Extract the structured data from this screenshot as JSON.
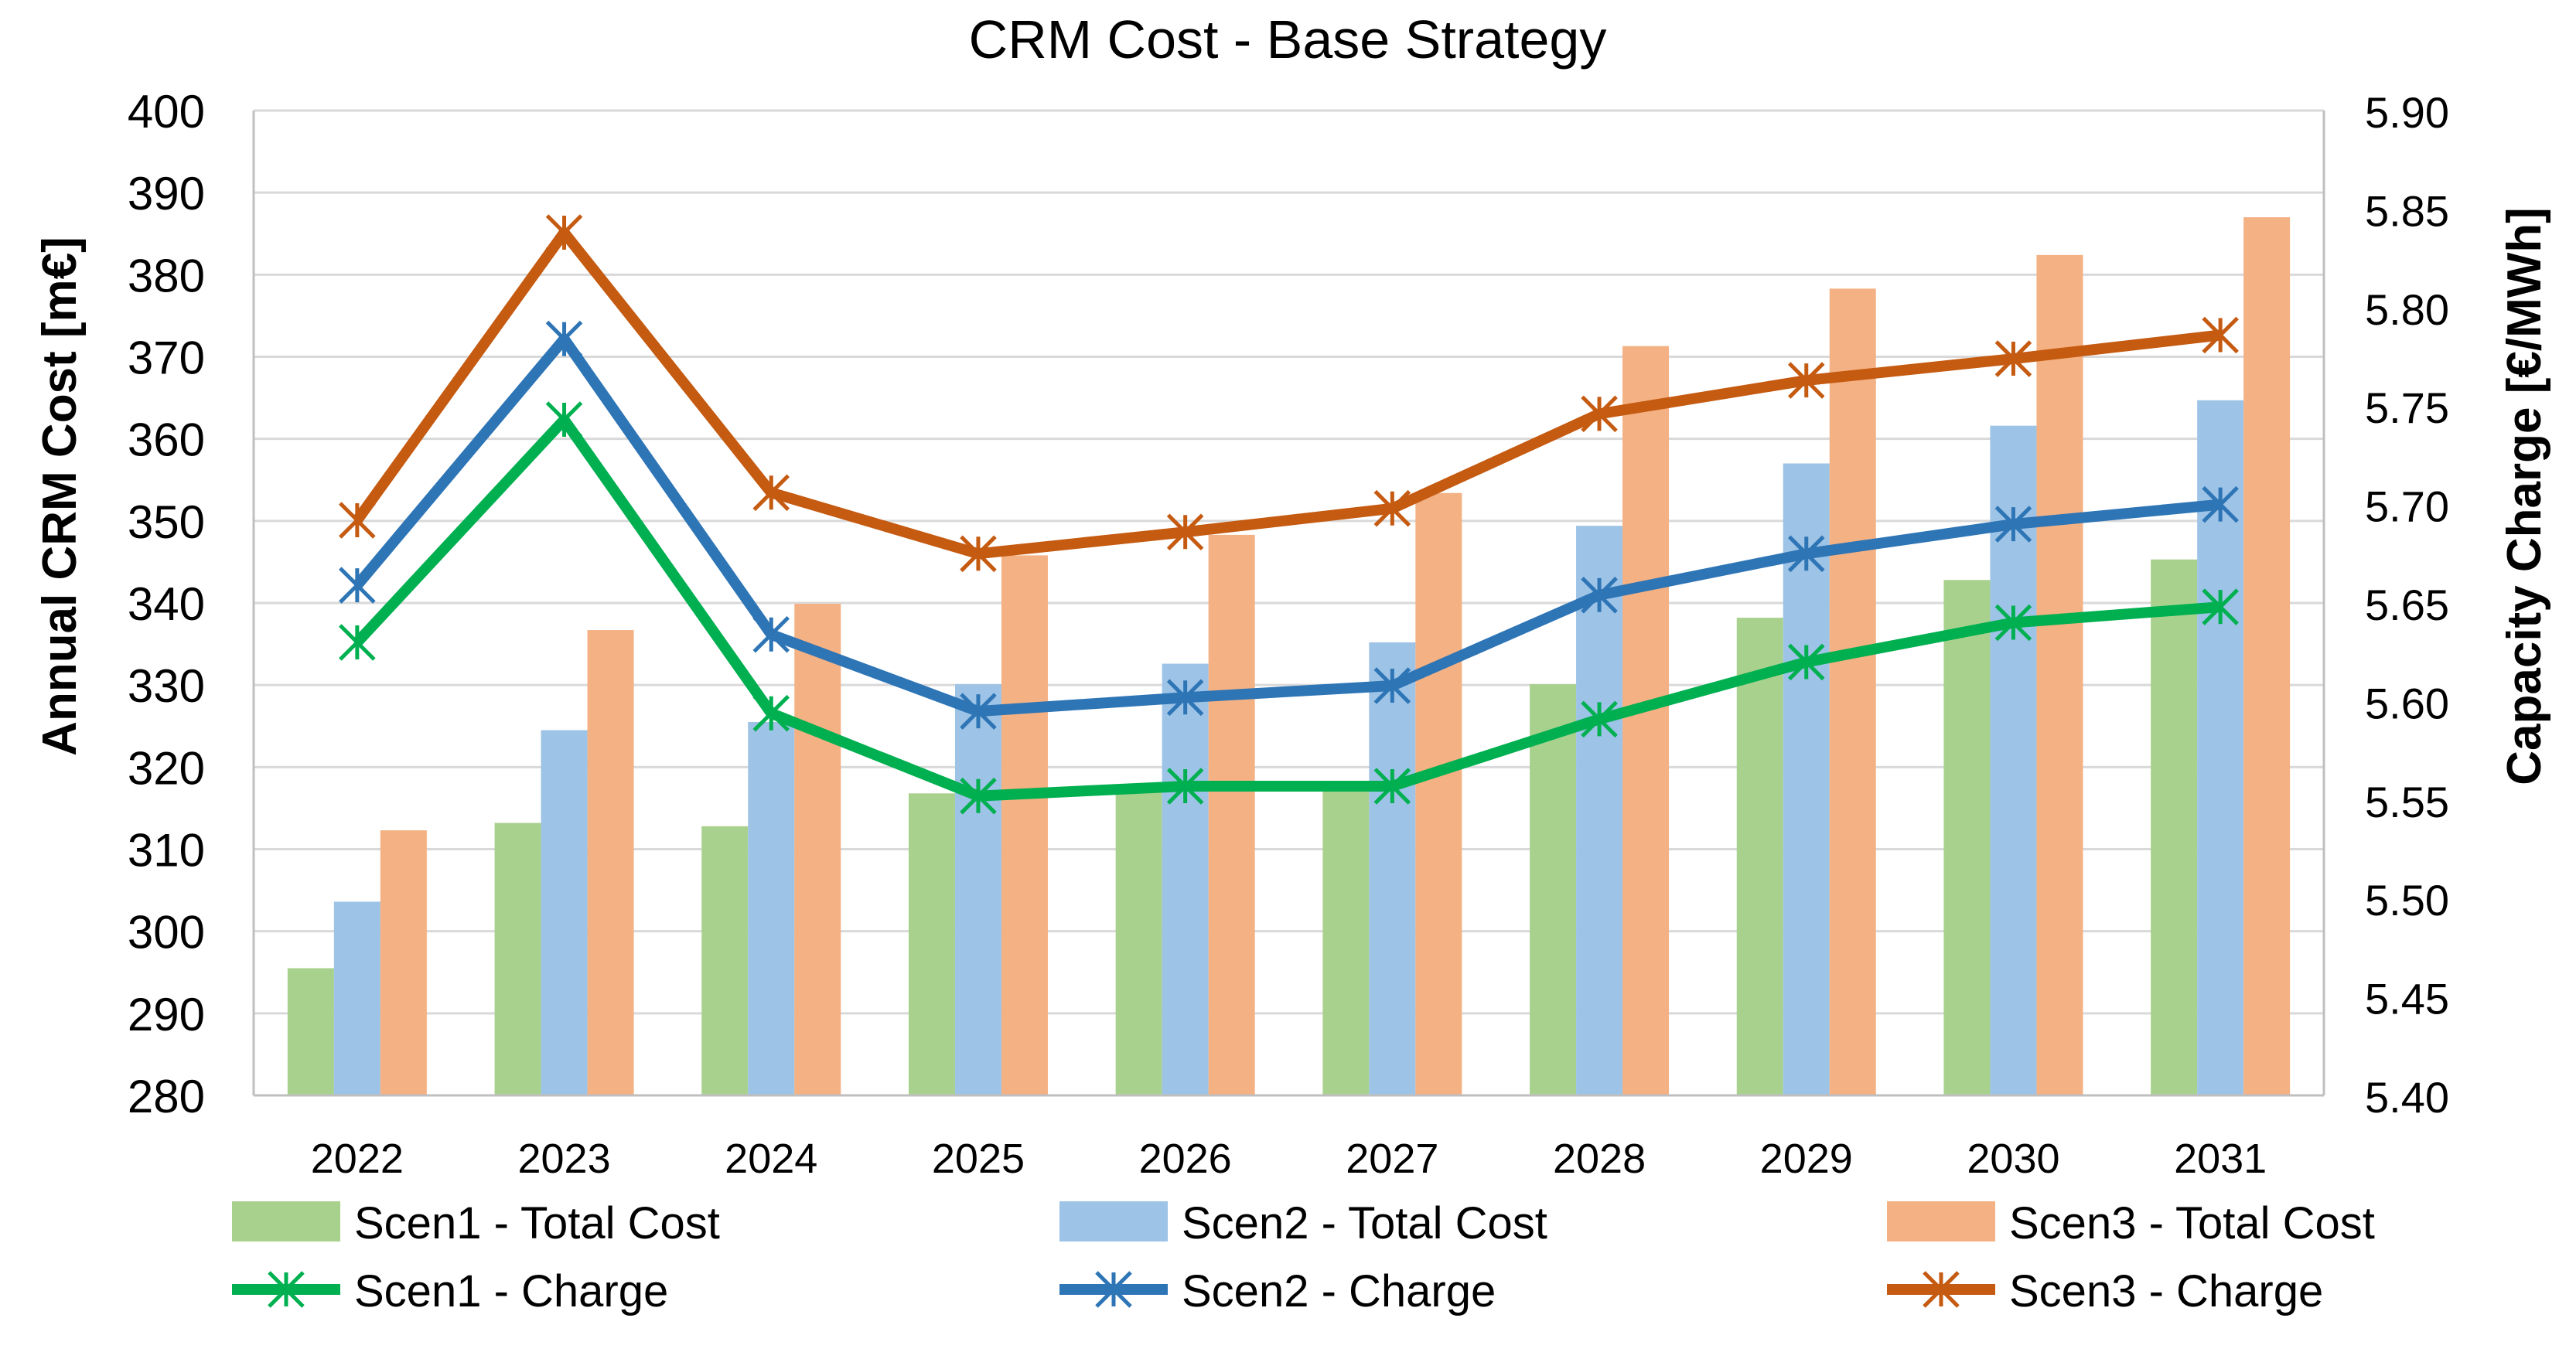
{
  "chart_data": {
    "type": "bar",
    "title": "CRM Cost  - Base Strategy",
    "categories": [
      "2022",
      "2023",
      "2024",
      "2025",
      "2026",
      "2027",
      "2028",
      "2029",
      "2030",
      "2031"
    ],
    "ylabel": "Annual CRM Cost [m€]",
    "y2label": "Capacity Charge [€/MWh]",
    "ylim": [
      280,
      400
    ],
    "yticks": [
      "280",
      "290",
      "300",
      "310",
      "320",
      "330",
      "340",
      "350",
      "360",
      "370",
      "380",
      "390",
      "400"
    ],
    "y2lim": [
      5.4,
      5.9
    ],
    "y2ticks": [
      "5.40",
      "5.45",
      "5.50",
      "5.55",
      "5.60",
      "5.65",
      "5.70",
      "5.75",
      "5.80",
      "5.85",
      "5.90"
    ],
    "grid": true,
    "legend_position": "bottom",
    "bar_series": [
      {
        "name": "Scen1 - Total Cost",
        "color": "#a9d18e",
        "values": [
          295.5,
          313.2,
          312.8,
          316.8,
          317.5,
          318.2,
          330.1,
          338.2,
          342.8,
          345.3
        ]
      },
      {
        "name": "Scen2 - Total Cost",
        "color": "#9dc3e6",
        "values": [
          303.6,
          324.5,
          325.5,
          330.1,
          332.6,
          335.2,
          349.4,
          357.0,
          361.6,
          364.7
        ]
      },
      {
        "name": "Scen3 - Total Cost",
        "color": "#f4b183",
        "values": [
          312.3,
          336.7,
          339.9,
          345.8,
          348.3,
          353.4,
          371.3,
          378.3,
          382.4,
          387.0
        ]
      }
    ],
    "line_series": [
      {
        "name": "Scen1 - Charge",
        "color": "#00b050",
        "values": [
          5.63,
          5.743,
          5.594,
          5.552,
          5.557,
          5.557,
          5.591,
          5.62,
          5.64,
          5.648
        ]
      },
      {
        "name": "Scen2 - Charge",
        "color": "#2e75b6",
        "values": [
          5.659,
          5.784,
          5.634,
          5.595,
          5.602,
          5.608,
          5.654,
          5.675,
          5.69,
          5.7
        ]
      },
      {
        "name": "Scen3 - Charge",
        "color": "#c55a11",
        "values": [
          5.692,
          5.838,
          5.706,
          5.675,
          5.686,
          5.698,
          5.746,
          5.763,
          5.774,
          5.786
        ]
      }
    ]
  }
}
